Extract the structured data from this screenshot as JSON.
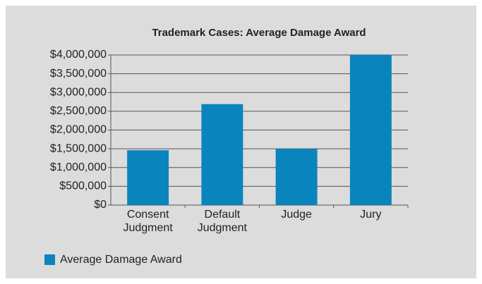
{
  "chart_data": {
    "type": "bar",
    "title": "Trademark Cases: Average Damage Award",
    "categories": [
      "Consent Judgment",
      "Default Judgment",
      "Judge",
      "Jury"
    ],
    "series": [
      {
        "name": "Average Damage Award",
        "color": "#0a84bd",
        "values": [
          1460000,
          2690000,
          1500000,
          4000000
        ]
      }
    ],
    "ylim": [
      0,
      4000000
    ],
    "yticks": [
      {
        "value": 0,
        "label": "$0"
      },
      {
        "value": 500000,
        "label": "$500,000"
      },
      {
        "value": 1000000,
        "label": "$1,000,000"
      },
      {
        "value": 1500000,
        "label": "$1,500,000"
      },
      {
        "value": 2000000,
        "label": "$2,000,000"
      },
      {
        "value": 2500000,
        "label": "$2,500,000"
      },
      {
        "value": 3000000,
        "label": "$3,000,000"
      },
      {
        "value": 3500000,
        "label": "$3,500,000"
      },
      {
        "value": 4000000,
        "label": "$4,000,000"
      }
    ],
    "grid": true,
    "legend": "bottom-left"
  }
}
